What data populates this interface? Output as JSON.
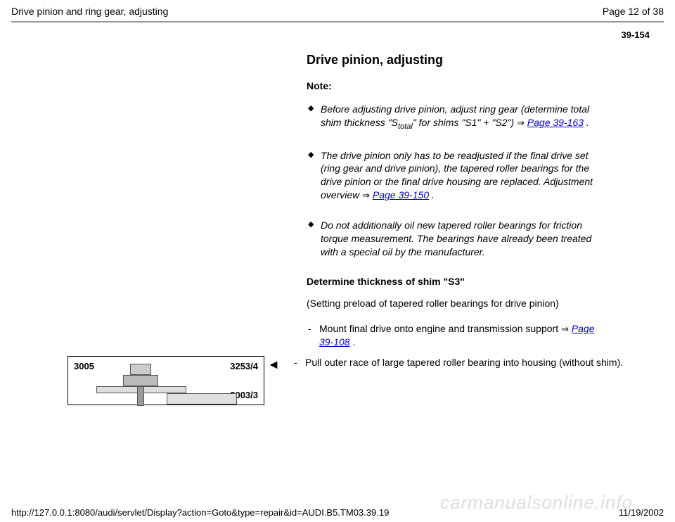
{
  "header": {
    "title": "Drive pinion and ring gear, adjusting",
    "page_info": "Page 12 of 38"
  },
  "page_number": "39-154",
  "section": {
    "heading": "Drive pinion, adjusting",
    "note_label": "Note:",
    "bullets": [
      {
        "text_before": "Before adjusting drive pinion, adjust ring gear (determine total shim thickness \"S",
        "sub": "total",
        "text_after": "\" for shims \"S1\" + \"S2\") ",
        "arrow": "⇒",
        "link": "Page 39-163",
        "period": " ."
      },
      {
        "text_before": "The drive pinion only has to be readjusted if the final drive set (ring gear and drive pinion), the tapered roller bearings for the drive pinion or the final drive housing are replaced. Adjustment overview ",
        "arrow": "⇒",
        "link": "Page 39-150",
        "period": " ."
      },
      {
        "text_before": "Do not additionally oil new tapered roller bearings for friction torque measurement. The bearings have already been treated with a special oil by the manufacturer."
      }
    ],
    "subsection_heading": "Determine thickness of shim \"S3\"",
    "paren_text": "(Setting preload of tapered roller bearings for drive pinion)",
    "dash_items": [
      {
        "text_before": "Mount final drive onto engine and transmission support ",
        "arrow": "⇒",
        "link": "Page 39-108",
        "period": " ."
      }
    ]
  },
  "figure": {
    "label1": "3005",
    "label2": "3253/4",
    "label3": "2003/3",
    "pointer": "◄",
    "pull_text": "Pull outer race of large tapered roller bearing into housing (without shim)."
  },
  "footer": {
    "url": "http://127.0.0.1:8080/audi/servlet/Display?action=Goto&type=repair&id=AUDI.B5.TM03.39.19",
    "date": "11/19/2002"
  },
  "watermark": "carmanualsonline.info"
}
